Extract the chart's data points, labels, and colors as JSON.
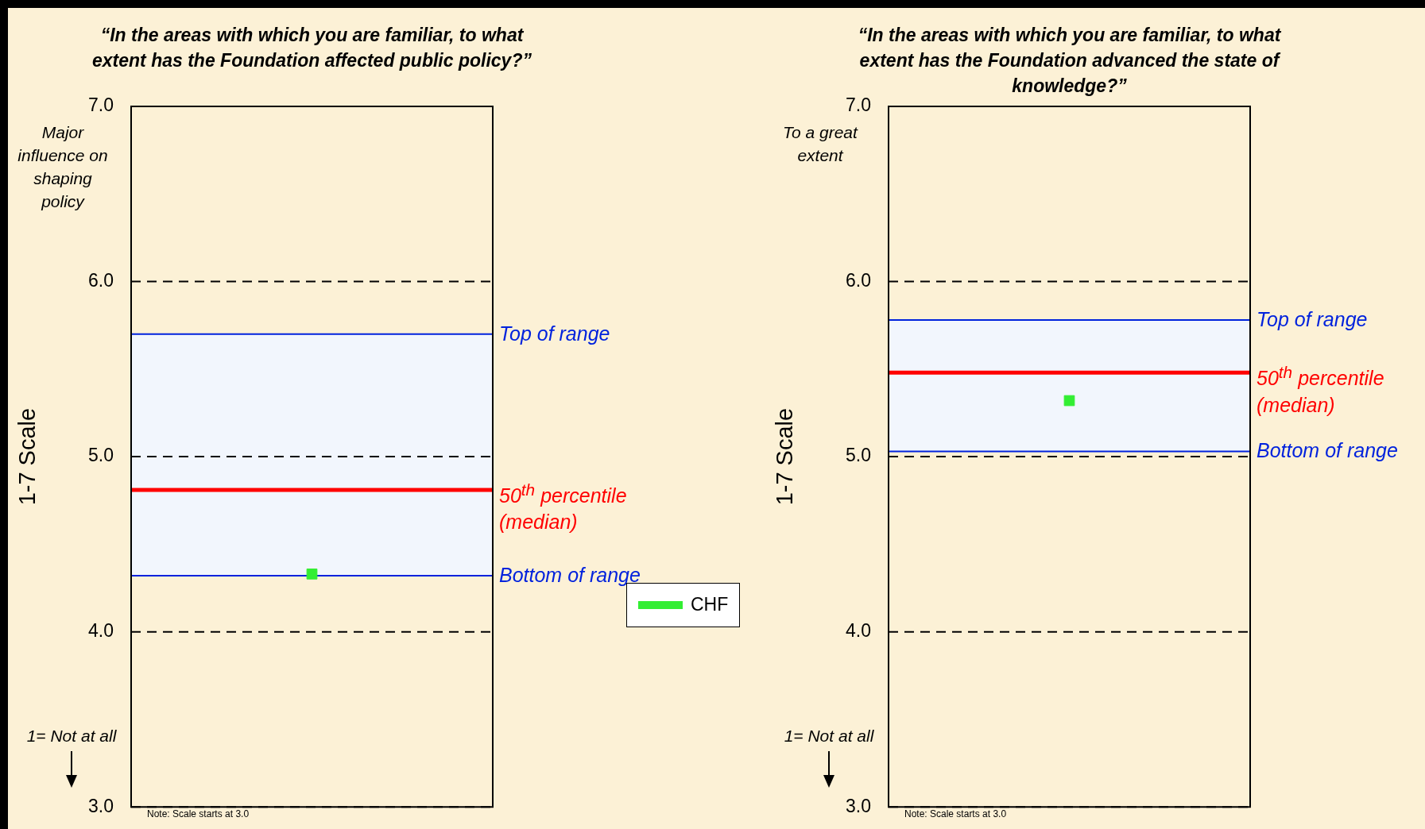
{
  "chart_data": [
    {
      "type": "scatter",
      "title": "“In the areas with which you are familiar, to what extent has the Foundation affected public policy?”",
      "ylabel": "1-7 Scale",
      "categories": [
        null
      ],
      "series": [
        {
          "name": "CHF",
          "color": "#33ee33",
          "values": [
            4.33
          ]
        }
      ],
      "ylim": [
        3,
        7
      ],
      "yticks": [
        {
          "value": 3,
          "label": "3.0"
        },
        {
          "value": 4,
          "label": "4.0"
        },
        {
          "value": 5,
          "label": "5.0"
        },
        {
          "value": 6,
          "label": "6.0"
        },
        {
          "value": 7,
          "label": "7.0"
        }
      ],
      "bands": [
        {
          "axis": "y",
          "from": 4.32,
          "to": 5.7,
          "color": "#f2f6fd"
        }
      ],
      "ref_lines": [
        {
          "axis": "y",
          "value": 5.7,
          "label": "Top of range",
          "color": "#0022dd"
        },
        {
          "axis": "y",
          "value": 4.81,
          "label": "50$^{th}$ percentile (median)",
          "color": "#ff0000"
        },
        {
          "axis": "y",
          "value": 4.32,
          "label": "Bottom of range",
          "color": "#0022dd"
        }
      ],
      "annotations": [
        "Major influence on shaping policy",
        "1= Not at all",
        "Note: Scale starts at 3.0"
      ],
      "grid": "y",
      "tick_labels": "y",
      "legend": "right",
      "marker": "square"
    },
    {
      "type": "scatter",
      "title": "“In the areas with which you are familiar, to what extent has the Foundation advanced the state of knowledge?”",
      "ylabel": "1-7 Scale",
      "categories": [
        null
      ],
      "series": [
        {
          "color": "#33ee33",
          "values": [
            5.32
          ]
        }
      ],
      "ylim": [
        3,
        7
      ],
      "yticks": [
        {
          "value": 3,
          "label": "3.0"
        },
        {
          "value": 4,
          "label": "4.0"
        },
        {
          "value": 5,
          "label": "5.0"
        },
        {
          "value": 6,
          "label": "6.0"
        },
        {
          "value": 7,
          "label": "7.0"
        }
      ],
      "bands": [
        {
          "axis": "y",
          "from": 5.03,
          "to": 5.78,
          "color": "#f2f6fd"
        }
      ],
      "ref_lines": [
        {
          "axis": "y",
          "value": 5.78,
          "label": "Top of range",
          "color": "#0022dd"
        },
        {
          "axis": "y",
          "value": 5.48,
          "label": "50$^{th}$ percentile (median)",
          "color": "#ff0000"
        },
        {
          "axis": "y",
          "value": 5.03,
          "label": "Bottom of range",
          "color": "#0022dd"
        }
      ],
      "annotations": [
        "To a great extent",
        "1= Not at all",
        "Note: Scale starts at 3.0"
      ],
      "grid": "y",
      "tick_labels": "y",
      "marker": "square"
    }
  ]
}
